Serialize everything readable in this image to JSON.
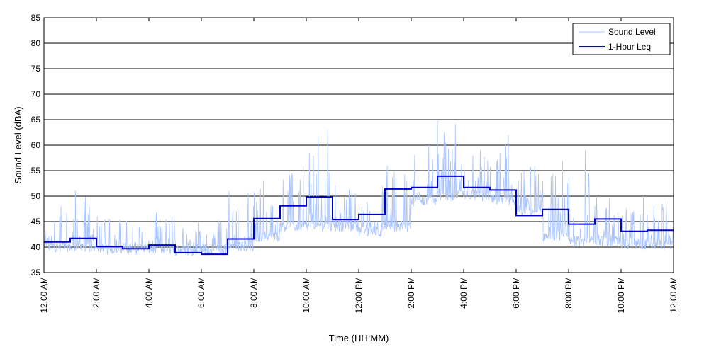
{
  "chart_data": {
    "type": "line",
    "title": "",
    "xlabel": "Time (HH:MM)",
    "ylabel": "Sound Level (dBA)",
    "ylim": [
      35,
      85
    ],
    "yticks": [
      35,
      40,
      45,
      50,
      55,
      60,
      65,
      70,
      75,
      80,
      85
    ],
    "xlim_hours": [
      0,
      24
    ],
    "xticks": [
      {
        "hour": 0,
        "label": "12:00 AM"
      },
      {
        "hour": 2,
        "label": "2:00 AM"
      },
      {
        "hour": 4,
        "label": "4:00 AM"
      },
      {
        "hour": 6,
        "label": "6:00 AM"
      },
      {
        "hour": 8,
        "label": "8:00 AM"
      },
      {
        "hour": 10,
        "label": "10:00 AM"
      },
      {
        "hour": 12,
        "label": "12:00 PM"
      },
      {
        "hour": 14,
        "label": "2:00 PM"
      },
      {
        "hour": 16,
        "label": "4:00 PM"
      },
      {
        "hour": 18,
        "label": "6:00 PM"
      },
      {
        "hour": 20,
        "label": "8:00 PM"
      },
      {
        "hour": 22,
        "label": "10:00 PM"
      },
      {
        "hour": 24,
        "label": "12:00 AM"
      }
    ],
    "grid": "horizontal",
    "legend": "top-right",
    "series": [
      {
        "name": "Sound Level",
        "color": "#a9c4ff",
        "note_values": "hourly baseline and peak estimates used to generate dense trace",
        "hourly_base": [
          39,
          39,
          38.5,
          38.5,
          38.5,
          38.3,
          38.3,
          39,
          41,
          43,
          43,
          43,
          42,
          43,
          48,
          49,
          49,
          48,
          46,
          41,
          40,
          40,
          39.5,
          39.5
        ],
        "hourly_peak": [
          48,
          51,
          46,
          44,
          46,
          45,
          45,
          51,
          53,
          56,
          63,
          52,
          52,
          56,
          60,
          65,
          59,
          62,
          56,
          57,
          59,
          50,
          50,
          49
        ]
      },
      {
        "name": "1-Hour Leq",
        "color": "#0000cc",
        "hours": [
          0,
          1,
          2,
          3,
          4,
          5,
          6,
          7,
          8,
          9,
          10,
          11,
          12,
          13,
          14,
          15,
          16,
          17,
          18,
          19,
          20,
          21,
          22,
          23
        ],
        "values": [
          41.0,
          41.7,
          40.1,
          39.7,
          40.4,
          38.9,
          38.6,
          41.6,
          45.6,
          48.1,
          49.8,
          45.4,
          46.4,
          51.4,
          51.7,
          53.9,
          51.7,
          51.2,
          46.2,
          47.4,
          44.5,
          45.5,
          43.1,
          43.3
        ]
      }
    ]
  }
}
